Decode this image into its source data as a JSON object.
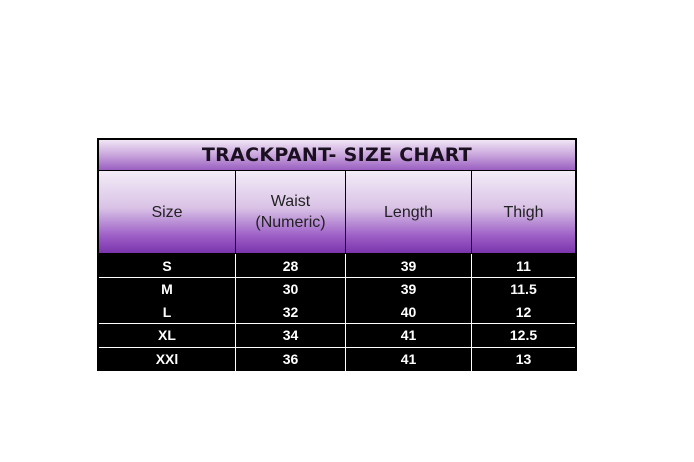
{
  "title": "TRACKPANT- SIZE CHART",
  "headers": [
    "Size",
    "Waist\n(Numeric)",
    "Length",
    "Thigh"
  ],
  "rows": [
    [
      "S",
      "28",
      "39",
      "11"
    ],
    [
      "M",
      "30",
      "39",
      "11.5"
    ],
    [
      "L",
      "32",
      "40",
      "12"
    ],
    [
      "XL",
      "34",
      "41",
      "12.5"
    ],
    [
      "XXl",
      "36",
      "41",
      "13"
    ]
  ],
  "colors": {
    "header_purple": "#7a35ab",
    "body_background": "#000000",
    "body_text": "#ffffff"
  }
}
